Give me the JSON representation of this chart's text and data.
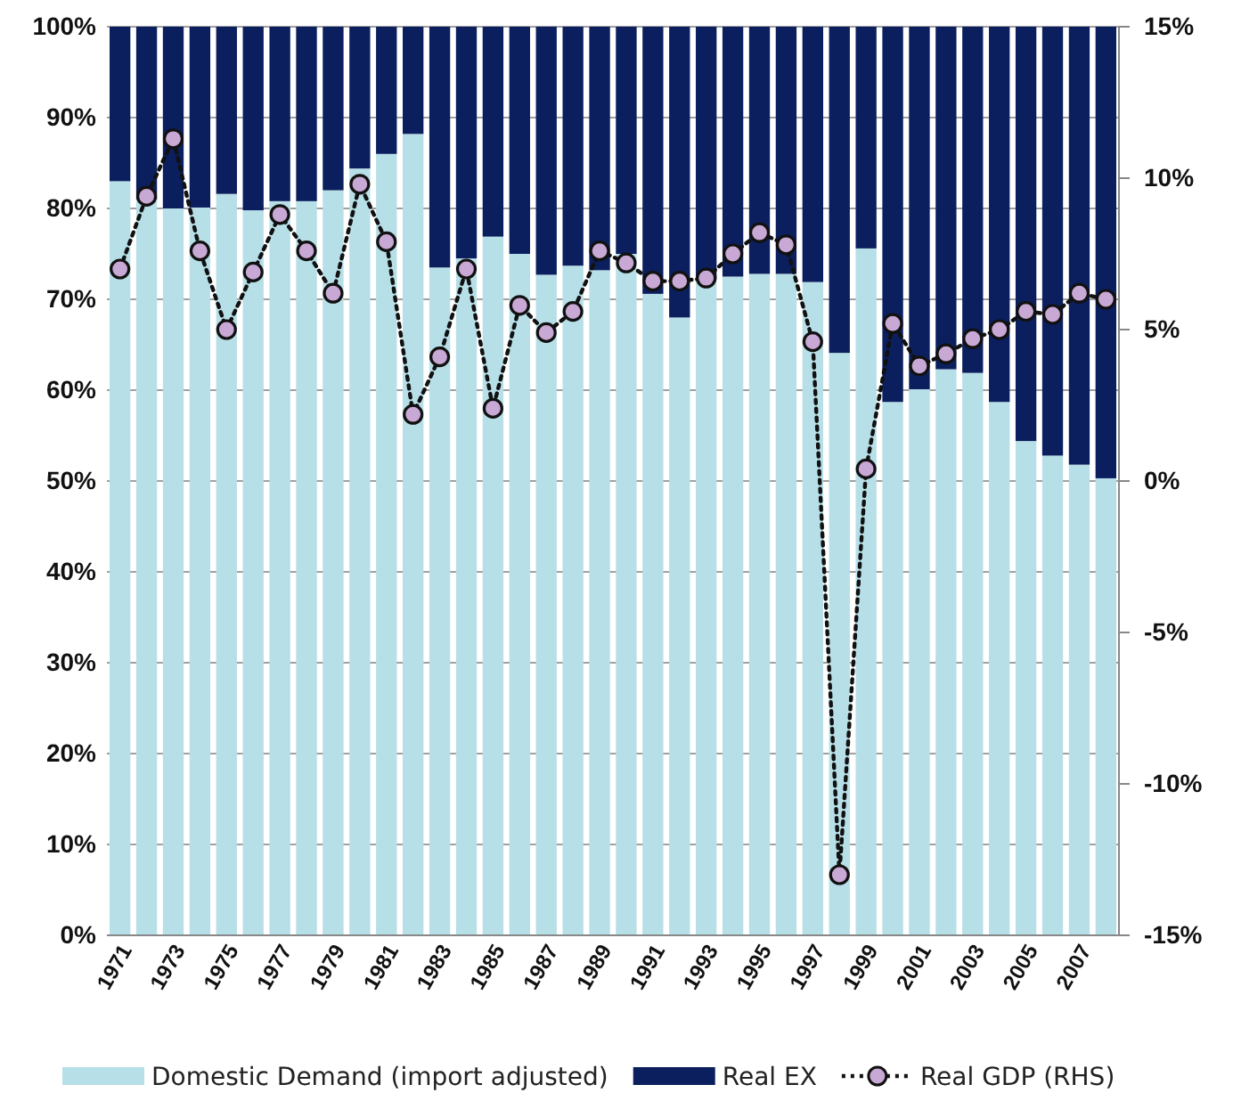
{
  "chart_data": {
    "type": "bar",
    "stacked": true,
    "legend": "bottom",
    "grid": "y",
    "categories": [
      "1971",
      null,
      "1973",
      null,
      "1975",
      null,
      "1977",
      null,
      "1979",
      null,
      "1981",
      null,
      "1983",
      null,
      "1985",
      null,
      "1987",
      null,
      "1989",
      null,
      "1991",
      null,
      "1993",
      null,
      "1995",
      null,
      "1997",
      null,
      "1999",
      null,
      "2001",
      null,
      "2003",
      null,
      "2005",
      null,
      "2007",
      null
    ],
    "ylim": [
      0,
      100
    ],
    "yticks": [
      {
        "value": 0,
        "label": "0%"
      },
      {
        "value": 10,
        "label": "10%"
      },
      {
        "value": 20,
        "label": "20%"
      },
      {
        "value": 30,
        "label": "30%"
      },
      {
        "value": 40,
        "label": "40%"
      },
      {
        "value": 50,
        "label": "50%"
      },
      {
        "value": 60,
        "label": "60%"
      },
      {
        "value": 70,
        "label": "70%"
      },
      {
        "value": 80,
        "label": "80%"
      },
      {
        "value": 90,
        "label": "90%"
      },
      {
        "value": 100,
        "label": "100%"
      }
    ],
    "y2lim": [
      -15,
      15
    ],
    "y2ticks": [
      {
        "value": -15,
        "label": "-15%"
      },
      {
        "value": -10,
        "label": "-10%"
      },
      {
        "value": -5,
        "label": "-5%"
      },
      {
        "value": 0,
        "label": "0%"
      },
      {
        "value": 5,
        "label": "5%"
      },
      {
        "value": 10,
        "label": "10%"
      },
      {
        "value": 15,
        "label": "15%"
      }
    ],
    "series": [
      {
        "name": "Domestic Demand (import adjusted)",
        "color": "#b7dfe7",
        "values": [
          83.0,
          81.0,
          80.0,
          80.1,
          81.6,
          79.8,
          80.8,
          80.8,
          82.0,
          84.4,
          86.0,
          88.2,
          73.5,
          74.5,
          76.9,
          75.0,
          72.7,
          73.7,
          73.2,
          75.0,
          70.6,
          68.0,
          72.2,
          72.5,
          72.8,
          72.8,
          71.9,
          64.1,
          75.6,
          58.7,
          60.1,
          62.3,
          61.9,
          58.7,
          54.4,
          52.8,
          51.8,
          50.3
        ]
      },
      {
        "name": "Real EX",
        "color": "#0b1f5e",
        "values": [
          17.0,
          19.0,
          20.0,
          19.9,
          18.4,
          20.2,
          19.2,
          19.2,
          18.0,
          15.6,
          14.0,
          11.8,
          26.5,
          25.5,
          23.1,
          25.0,
          27.3,
          26.3,
          26.8,
          25.0,
          29.4,
          32.0,
          27.8,
          27.5,
          27.2,
          27.2,
          28.1,
          35.9,
          24.4,
          41.3,
          39.9,
          37.7,
          38.1,
          41.3,
          45.6,
          47.2,
          48.2,
          49.7
        ]
      },
      {
        "name": "Real GDP (RHS)",
        "type": "line",
        "axis": "y2",
        "color": "#111111",
        "marker": "circle",
        "line_style": "dotted",
        "values": [
          7.0,
          9.4,
          11.3,
          7.6,
          5.0,
          6.9,
          8.8,
          7.6,
          6.2,
          9.8,
          7.9,
          2.2,
          4.1,
          7.0,
          2.4,
          5.8,
          4.9,
          5.6,
          7.6,
          7.2,
          6.6,
          6.6,
          6.7,
          7.5,
          8.2,
          7.8,
          4.6,
          -13.0,
          0.4,
          5.2,
          3.8,
          4.2,
          4.7,
          5.0,
          5.6,
          5.5,
          6.2,
          6.0
        ]
      }
    ]
  }
}
